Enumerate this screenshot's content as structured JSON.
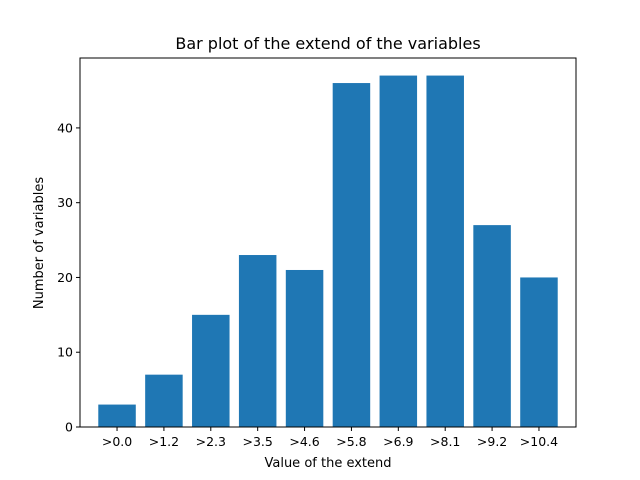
{
  "chart_data": {
    "type": "bar",
    "title": "Bar plot of the extend of the variables",
    "xlabel": "Value of the extend",
    "ylabel": "Number of variables",
    "categories": [
      ">0.0",
      ">1.2",
      ">2.3",
      ">3.5",
      ">4.6",
      ">5.8",
      ">6.9",
      ">8.1",
      ">9.2",
      ">10.4"
    ],
    "values": [
      3,
      7,
      15,
      23,
      21,
      46,
      47,
      47,
      27,
      20
    ],
    "ylim": [
      0,
      49.35
    ],
    "yticks": [
      0,
      10,
      20,
      30,
      40
    ],
    "grid": false,
    "bar_color": "#1f77b4"
  }
}
